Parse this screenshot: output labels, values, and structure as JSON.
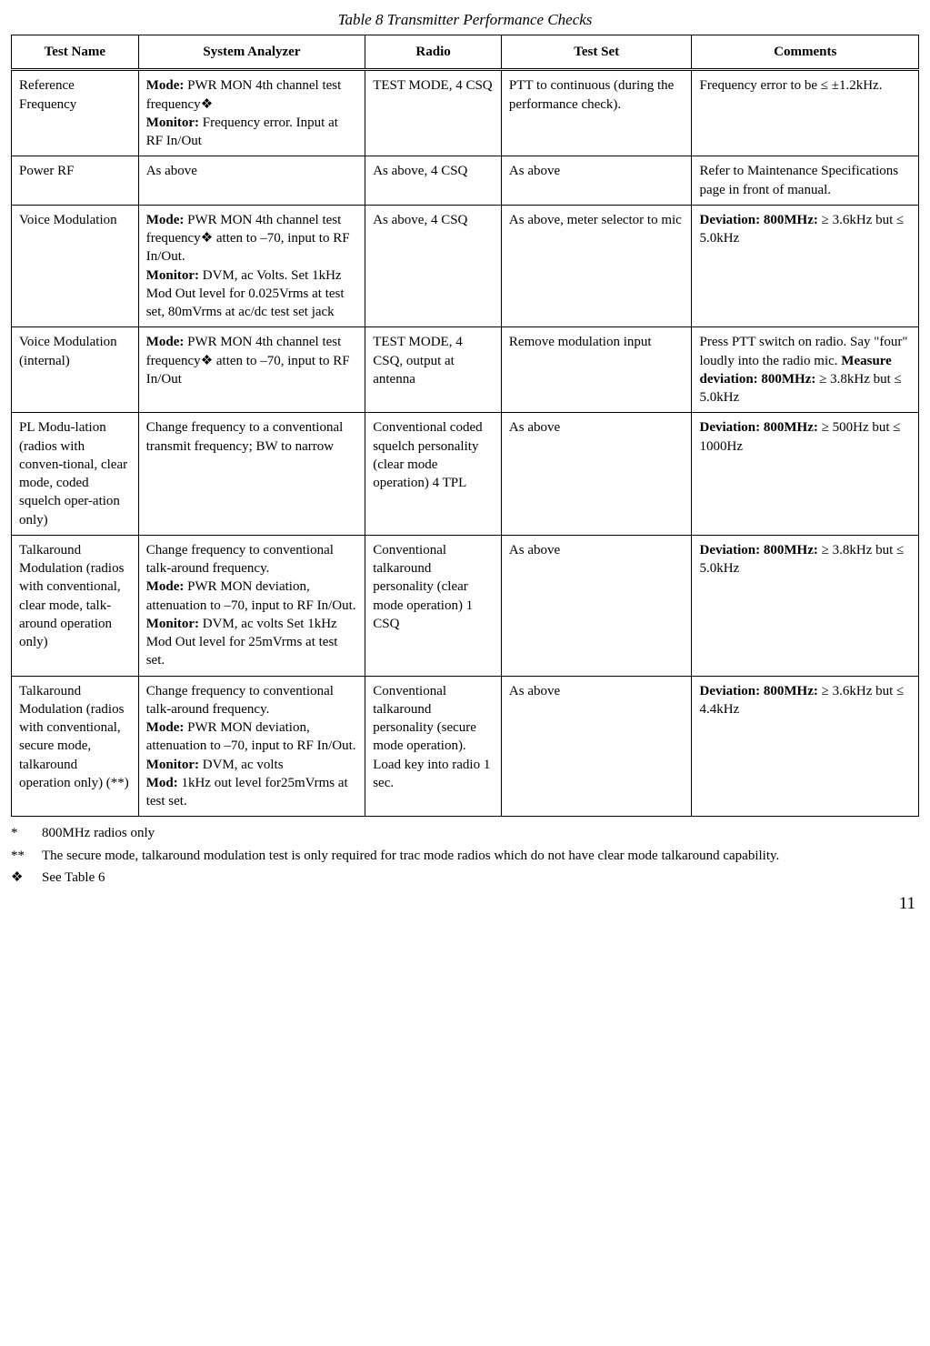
{
  "title": "Table 8  Transmitter Performance Checks",
  "headers": {
    "c1": "Test Name",
    "c2": "System Analyzer",
    "c3": "Radio",
    "c4": "Test Set",
    "c5": "Comments"
  },
  "rows": [
    {
      "c1": "Reference Frequency",
      "c2_mode_label": "Mode:",
      "c2_mode_text": " PWR MON 4th channel test frequency",
      "c2_sym": "❖",
      "c2_monitor_label": "Monitor:",
      "c2_monitor_text": " Frequency error. Input at RF In/Out",
      "c3": "TEST MODE, 4 CSQ",
      "c4": "PTT to continuous (during the performance check).",
      "c5": "Frequency error to be ≤ ±1.2kHz."
    },
    {
      "c1": "Power RF",
      "c2_plain": "As above",
      "c3": "As above, 4 CSQ",
      "c4": "As above",
      "c5": "Refer to Maintenance Specifications page in front of manual."
    },
    {
      "c1": "Voice Modulation",
      "c2_mode_label": "Mode:",
      "c2_mode_text": " PWR MON 4th channel test frequency",
      "c2_sym": "❖",
      "c2_mode_tail": " atten to –70, input to RF In/Out.",
      "c2_monitor_label": "Monitor:",
      "c2_monitor_text": " DVM, ac Volts. Set 1kHz Mod Out level for 0.025Vrms at test set, 80mVrms at ac/dc test set jack",
      "c3": "As above, 4 CSQ",
      "c4": "As above, meter selector to mic",
      "c5_dev_label": "Deviation: 800MHz:",
      "c5_dev_text": " ≥ 3.6kHz but ≤ 5.0kHz"
    },
    {
      "c1": "Voice Modulation (internal)",
      "c2_mode_label": "Mode:",
      "c2_mode_text": " PWR MON 4th channel test frequency",
      "c2_sym": "❖",
      "c2_mode_tail": " atten to –70, input to RF In/Out",
      "c3": "TEST MODE, 4 CSQ, output at antenna",
      "c4": "Remove modulation input",
      "c5_pre": "Press PTT switch on radio. Say \"four\" loudly into the radio mic. ",
      "c5_dev_label": "Measure deviation: 800MHz:",
      "c5_dev_text": " ≥ 3.8kHz but ≤ 5.0kHz"
    },
    {
      "c1": "PL Modu-lation (radios with conven-tional, clear mode, coded squelch oper-ation only)",
      "c2_plain": "Change frequency to a conventional transmit frequency; BW to narrow",
      "c3": "Conventional coded squelch personality (clear mode operation) 4 TPL",
      "c4": "As above",
      "c5_dev_label": "Deviation: 800MHz:",
      "c5_dev_text": " ≥ 500Hz but ≤ 1000Hz"
    },
    {
      "c1": "Talkaround Modulation (radios with conventional,  clear mode, talk-around operation only)",
      "c2_para1": "Change frequency to conventional talk-around frequency.",
      "c2_mode_label": " Mode:",
      "c2_mode_text": " PWR MON deviation, attenuation to –70, input to RF In/Out.",
      "c2_monitor_label": " Monitor:",
      "c2_monitor_text": " DVM, ac volts Set 1kHz Mod Out level for 25mVrms at test set.",
      "c3": "Conventional talkaround personality (clear mode operation) 1 CSQ",
      "c4": "As above",
      "c5_dev_label": "Deviation: 800MHz:",
      "c5_dev_text": " ≥ 3.8kHz but ≤ 5.0kHz"
    },
    {
      "c1": "Talkaround Modulation (radios with conventional, secure mode, talkaround operation only) (**)",
      "c2_para1": "Change frequency to conventional talk-around frequency.",
      "c2_mode_label": " Mode:",
      "c2_mode_text": " PWR MON deviation, attenuation to –70, input to RF In/Out.",
      "c2_monitor_label": "Monitor:",
      "c2_monitor_text": " DVM, ac volts",
      "c2_mod_label": "Mod:",
      "c2_mod_text": " 1kHz out level for25mVrms at test set.",
      "c3": "Conventional talkaround personality (secure mode operation). Load key into radio 1 sec.",
      "c4": "As above",
      "c5_dev_label": "Deviation: 800MHz:",
      "c5_dev_text": " ≥ 3.6kHz but ≤ 4.4kHz"
    }
  ],
  "footnotes": {
    "f1_mark": "*",
    "f1_text": "800MHz radios only",
    "f2_mark": "**",
    "f2_text": "The secure mode, talkaround modulation test is only required for trac mode radios which do not have clear mode talkaround capability.",
    "f3_mark": "❖",
    "f3_text": "See Table 6"
  },
  "page_number": "11"
}
